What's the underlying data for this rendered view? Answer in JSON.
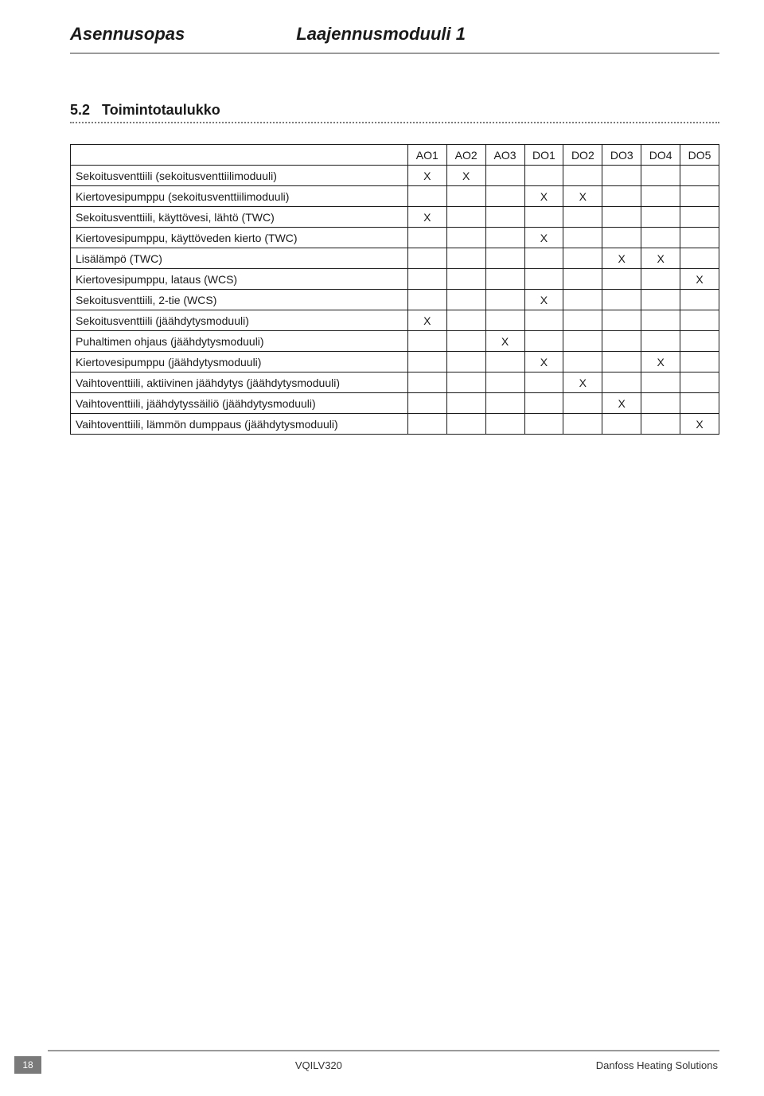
{
  "header": {
    "left": "Asennusopas",
    "right": "Laajennusmoduuli 1"
  },
  "section": {
    "number": "5.2",
    "title": "Toimintotaulukko"
  },
  "table": {
    "columns": [
      "AO1",
      "AO2",
      "AO3",
      "DO1",
      "DO2",
      "DO3",
      "DO4",
      "DO5"
    ],
    "rows": [
      {
        "label": "Sekoitusventtiili (sekoitusventtiilimoduuli)",
        "cells": [
          "X",
          "X",
          "",
          "",
          "",
          "",
          "",
          ""
        ]
      },
      {
        "label": "Kiertovesipumppu (sekoitusventtiilimoduuli)",
        "cells": [
          "",
          "",
          "",
          "X",
          "X",
          "",
          "",
          ""
        ]
      },
      {
        "label": "Sekoitusventtiili, käyttövesi, lähtö (TWC)",
        "cells": [
          "X",
          "",
          "",
          "",
          "",
          "",
          "",
          ""
        ]
      },
      {
        "label": "Kiertovesipumppu, käyttöveden kierto (TWC)",
        "cells": [
          "",
          "",
          "",
          "X",
          "",
          "",
          "",
          ""
        ]
      },
      {
        "label": "Lisälämpö (TWC)",
        "cells": [
          "",
          "",
          "",
          "",
          "",
          "X",
          "X",
          ""
        ]
      },
      {
        "label": "Kiertovesipumppu, lataus (WCS)",
        "cells": [
          "",
          "",
          "",
          "",
          "",
          "",
          "",
          "X"
        ]
      },
      {
        "label": "Sekoitusventtiili, 2-tie (WCS)",
        "cells": [
          "",
          "",
          "",
          "X",
          "",
          "",
          "",
          ""
        ]
      },
      {
        "label": "Sekoitusventtiili (jäähdytysmoduuli)",
        "cells": [
          "X",
          "",
          "",
          "",
          "",
          "",
          "",
          ""
        ]
      },
      {
        "label": "Puhaltimen ohjaus (jäähdytysmoduuli)",
        "cells": [
          "",
          "",
          "X",
          "",
          "",
          "",
          "",
          ""
        ]
      },
      {
        "label": "Kiertovesipumppu (jäähdytysmoduuli)",
        "cells": [
          "",
          "",
          "",
          "X",
          "",
          "",
          "X",
          ""
        ]
      },
      {
        "label": "Vaihtoventtiili, aktiivinen jäähdytys (jäähdytysmoduuli)",
        "cells": [
          "",
          "",
          "",
          "",
          "X",
          "",
          "",
          ""
        ]
      },
      {
        "label": "Vaihtoventtiili, jäähdytyssäiliö (jäähdytysmoduuli)",
        "cells": [
          "",
          "",
          "",
          "",
          "",
          "X",
          "",
          ""
        ]
      },
      {
        "label": "Vaihtoventtiili, lämmön dumppaus (jäähdytysmoduuli)",
        "cells": [
          "",
          "",
          "",
          "",
          "",
          "",
          "",
          "X"
        ]
      }
    ]
  },
  "footer": {
    "page": "18",
    "center": "VQILV320",
    "right": "Danfoss Heating Solutions"
  }
}
